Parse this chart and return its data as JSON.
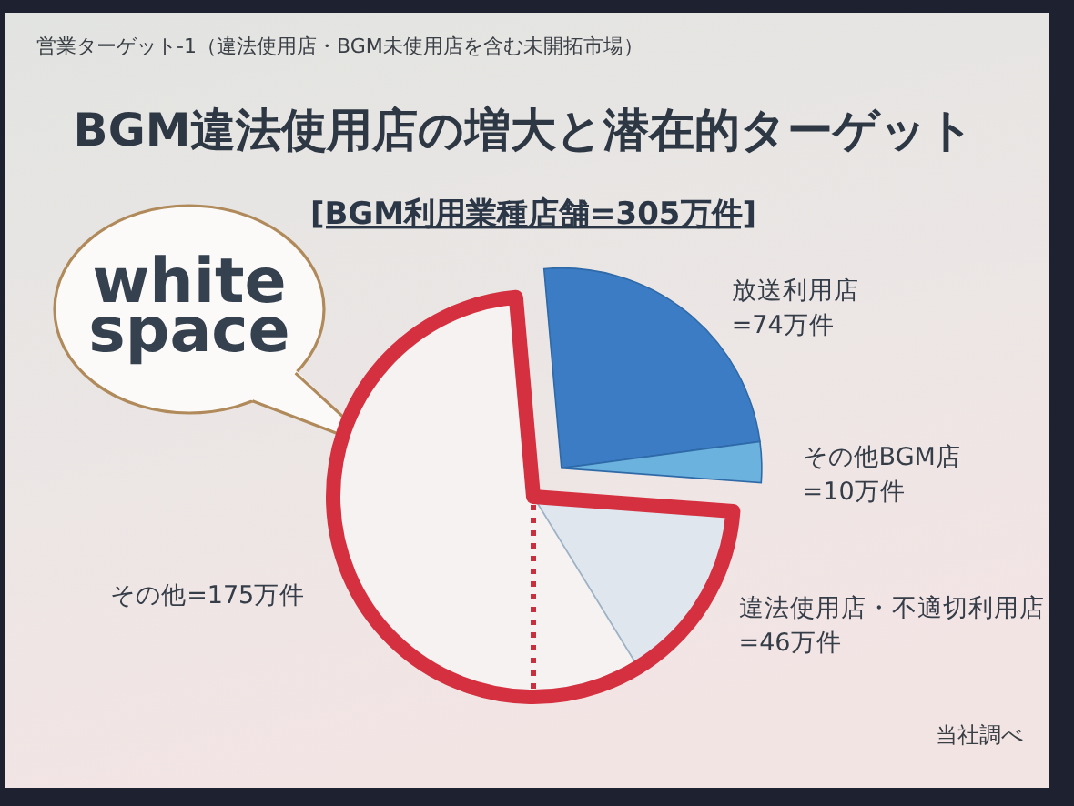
{
  "chart_data": {
    "type": "pie",
    "title": "BGM違法使用店の増大と潜在的ターゲット",
    "subtitle": "[BGM利用業種店舗=305万件]",
    "categories": [
      "放送利用店",
      "その他BGM店",
      "違法使用店・不適切利用店",
      "その他"
    ],
    "values": [
      74,
      10,
      46,
      175
    ],
    "colors": [
      "#3b7cc4",
      "#6cb2de",
      "#dfe6ee",
      "#f6f2f2"
    ],
    "value_labels": [
      "=74万件",
      "=10万件",
      "=46万件",
      "=175万件"
    ],
    "annotations": [
      "営業ターゲット-1（違法使用店・BGM未使用店を含む未開拓市場）",
      "white space",
      "当社調べ"
    ]
  }
}
